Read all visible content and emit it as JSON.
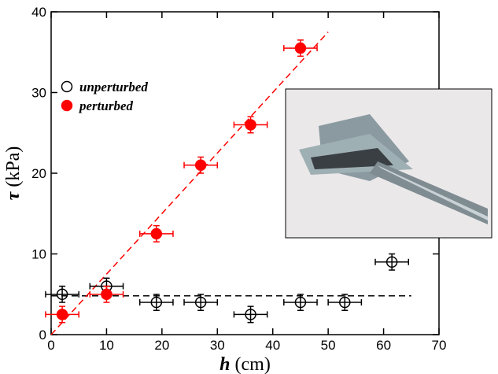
{
  "chart_data": {
    "type": "scatter",
    "xlabel": {
      "symbol": "h",
      "unit": "(cm)"
    },
    "ylabel": {
      "symbol": "τ",
      "unit": "(kPa)"
    },
    "xlim": [
      0,
      70
    ],
    "xticks": [
      0,
      10,
      20,
      30,
      40,
      50,
      60,
      70
    ],
    "ylim": [
      0,
      40
    ],
    "yticks": [
      0,
      10,
      20,
      30,
      40
    ],
    "legend": "upper left",
    "series": [
      {
        "name": "unperturbed",
        "color": "#000000",
        "filled": false,
        "x": [
          2,
          10,
          19,
          27,
          36,
          45,
          53,
          61.5
        ],
        "values": [
          5,
          6,
          4,
          4,
          2.5,
          4,
          4,
          9
        ],
        "x_error": [
          3,
          3,
          3,
          3,
          3,
          3,
          3,
          3
        ],
        "y_error": [
          1,
          1,
          1,
          1,
          1,
          1,
          1,
          1
        ]
      },
      {
        "name": "perturbed",
        "color": "#ff0000",
        "filled": true,
        "x": [
          2,
          10,
          19,
          27,
          36,
          45
        ],
        "values": [
          2.5,
          5,
          12.5,
          21,
          26,
          35.5
        ],
        "x_error": [
          3,
          3,
          3,
          3,
          3,
          3
        ],
        "y_error": [
          1,
          1,
          1,
          1,
          1,
          1
        ]
      }
    ],
    "lines": [
      {
        "color": "#000000",
        "x": [
          0,
          65
        ],
        "y": [
          4.8,
          4.8
        ]
      },
      {
        "color": "#ff0000",
        "x": [
          0,
          50
        ],
        "y": [
          0,
          37.5
        ]
      }
    ]
  }
}
